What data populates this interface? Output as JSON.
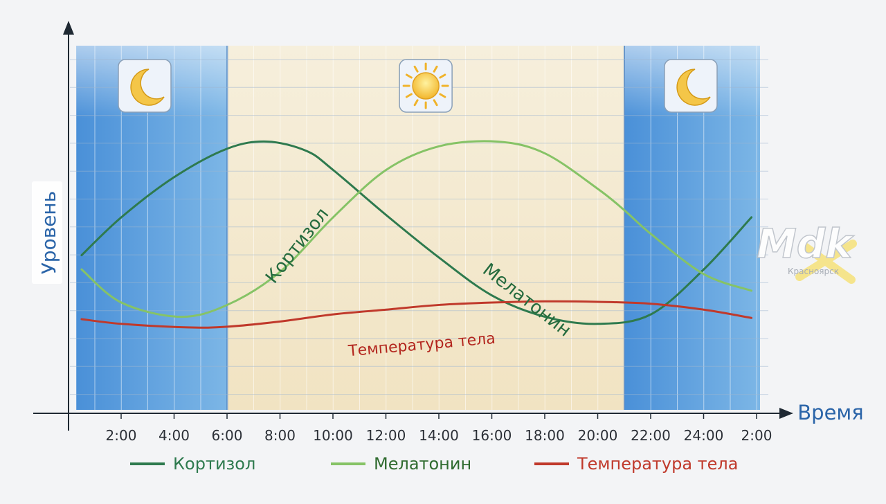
{
  "chart_data": {
    "type": "line",
    "title": "",
    "xlabel": "Время",
    "ylabel": "Уровень",
    "x_ticks": [
      "2:00",
      "4:00",
      "6:00",
      "8:00",
      "10:00",
      "12:00",
      "14:00",
      "16:00",
      "18:00",
      "20:00",
      "22:00",
      "24:00",
      "2:00"
    ],
    "x_range_hours": [
      0.3,
      26.6
    ],
    "y_range": [
      0,
      100
    ],
    "grid": true,
    "legend_position": "bottom",
    "periods": [
      {
        "type": "night",
        "start": 0.3,
        "end": 6,
        "icon": "moon-icon"
      },
      {
        "type": "day",
        "start": 6,
        "end": 21,
        "icon": "sun-icon"
      },
      {
        "type": "night",
        "start": 21,
        "end": 26.3,
        "icon": "moon-icon"
      }
    ],
    "series": [
      {
        "name": "Кортизол",
        "color": "#2e7a4e",
        "x": [
          0.5,
          2,
          4,
          6,
          7.5,
          9,
          10,
          12,
          14,
          16,
          18,
          20,
          22,
          24,
          25.8
        ],
        "y": [
          39,
          55,
          72,
          84,
          87,
          83,
          75,
          56,
          38,
          22,
          13,
          10,
          14,
          33,
          55
        ]
      },
      {
        "name": "Мелатонин",
        "color": "#86c366",
        "x": [
          0.5,
          2,
          4.2,
          6,
          8,
          10,
          12,
          14,
          16.2,
          18,
          20,
          21,
          22,
          24,
          25.8
        ],
        "y": [
          33,
          19,
          13,
          18,
          32,
          55,
          75,
          85,
          87,
          82,
          67,
          58,
          48,
          31,
          24
        ]
      },
      {
        "name": "Температура тела",
        "color": "#c0392b",
        "x": [
          0.5,
          2,
          4.5,
          6,
          8,
          10,
          12,
          14,
          16,
          18,
          20,
          22,
          24,
          25.8
        ],
        "y": [
          12,
          10,
          8.5,
          8.8,
          11,
          14,
          16,
          18,
          19,
          19.5,
          19.3,
          18.5,
          16,
          12.5
        ]
      }
    ],
    "annotations": [
      {
        "text": "Кортизол",
        "series": 0
      },
      {
        "text": "Мелатонин",
        "series": 1
      },
      {
        "text": "Температура тела",
        "series": 2
      }
    ],
    "legend": [
      "Кортизол",
      "Мелатонин",
      "Температура тела"
    ]
  },
  "watermark": {
    "brand": "Mdk",
    "city": "Красноярск",
    "accent": "#f6e27a"
  }
}
